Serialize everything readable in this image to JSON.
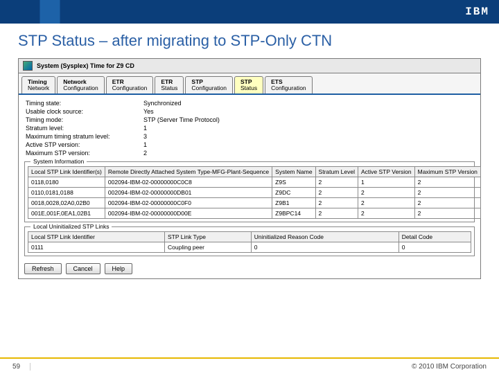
{
  "slide": {
    "title": "STP Status – after migrating to STP-Only CTN",
    "page_number": "59",
    "copyright": "© 2010 IBM Corporation",
    "logo_text": "IBM"
  },
  "panel": {
    "title": "System (Sysplex) Time for Z9 CD"
  },
  "tabs": [
    {
      "l1": "Timing",
      "l2": "Network"
    },
    {
      "l1": "Network",
      "l2": "Configuration"
    },
    {
      "l1": "ETR",
      "l2": "Configuration"
    },
    {
      "l1": "ETR",
      "l2": "Status"
    },
    {
      "l1": "STP",
      "l2": "Configuration"
    },
    {
      "l1": "STP",
      "l2": "Status"
    },
    {
      "l1": "ETS",
      "l2": "Configuration"
    }
  ],
  "active_tab_index": 5,
  "kv": [
    {
      "k": "Timing state:",
      "v": "Synchronized"
    },
    {
      "k": "Usable clock source:",
      "v": "Yes"
    },
    {
      "k": "Timing mode:",
      "v": "STP (Server Time Protocol)"
    },
    {
      "k": "Stratum level:",
      "v": "1"
    },
    {
      "k": "Maximum timing stratum level:",
      "v": "3"
    },
    {
      "k": "Active STP version:",
      "v": "1"
    },
    {
      "k": "Maximum STP version:",
      "v": "2"
    }
  ],
  "sysinfo": {
    "legend": "System Information",
    "columns": [
      "Local STP Link Identifier(s)",
      "Remote Directly Attached System Type-MFG-Plant-Sequence",
      "System Name",
      "Stratum Level",
      "Active STP Version",
      "Maximum STP Version"
    ],
    "rows": [
      [
        "0118,0180",
        "002094-IBM-02-00000000C0C8",
        "Z9S",
        "2",
        "1",
        "2"
      ],
      [
        "0110,0181,0188",
        "002094-IBM-02-00000000DB01",
        "Z9DC",
        "2",
        "2",
        "2"
      ],
      [
        "0018,0028,02A0,02B0",
        "002094-IBM-02-00000000C0F0",
        "Z9B1",
        "2",
        "2",
        "2"
      ],
      [
        "001E,001F,0EA1,02B1",
        "002094-IBM-02-00000000D00E",
        "Z9BPC14",
        "2",
        "2",
        "2"
      ]
    ]
  },
  "uninit": {
    "legend": "Local Uninitialized STP Links",
    "columns": [
      "Local STP Link Identifier",
      "STP Link Type",
      "Uninitialized Reason Code",
      "Detail Code"
    ],
    "rows": [
      [
        "0111",
        "Coupling peer",
        "0",
        "0"
      ]
    ]
  },
  "buttons": {
    "refresh": "Refresh",
    "cancel": "Cancel",
    "help": "Help"
  }
}
